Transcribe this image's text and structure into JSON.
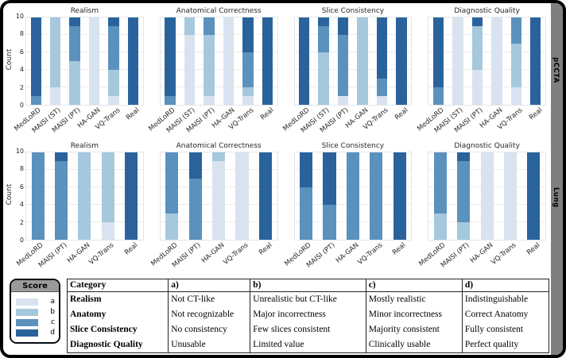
{
  "figure": {
    "ylabel": "Count",
    "yticks": [
      0,
      2,
      4,
      6,
      8,
      10
    ],
    "ylim": [
      0,
      10
    ],
    "side_labels": [
      "pCCTA",
      "Lung"
    ],
    "palette": {
      "a": "#d8e3ef",
      "b": "#a6c8dd",
      "c": "#5b91bd",
      "d": "#2a639c"
    },
    "strip_color": "#7f7f7f",
    "grid_color": "#ececec"
  },
  "legend": {
    "title": "Score",
    "entries": [
      {
        "label": "a",
        "color": "#d8e3ef"
      },
      {
        "label": "b",
        "color": "#a6c8dd"
      },
      {
        "label": "c",
        "color": "#5b91bd"
      },
      {
        "label": "d",
        "color": "#2a639c"
      }
    ]
  },
  "chart_data": [
    {
      "type": "bar",
      "stacked": true,
      "group": "pCCTA",
      "title": "Realism",
      "ylabel": "Count",
      "ylim": [
        0,
        10
      ],
      "categories": [
        "MedLoRD",
        "MAISI (ST)",
        "MAISI (PT)",
        "HA-GAN",
        "VQ-Trans",
        "Real"
      ],
      "series": [
        {
          "name": "a",
          "values": [
            0,
            2,
            0,
            10,
            1,
            0
          ]
        },
        {
          "name": "b",
          "values": [
            0,
            8,
            5,
            0,
            3,
            0
          ]
        },
        {
          "name": "c",
          "values": [
            1,
            0,
            4,
            0,
            5,
            0
          ]
        },
        {
          "name": "d",
          "values": [
            9,
            0,
            1,
            0,
            1,
            10
          ]
        }
      ]
    },
    {
      "type": "bar",
      "stacked": true,
      "group": "pCCTA",
      "title": "Anatomical Correctness",
      "ylabel": "Count",
      "ylim": [
        0,
        10
      ],
      "categories": [
        "MedLoRD",
        "MAISI (ST)",
        "MAISI (PT)",
        "HA-GAN",
        "VQ-Trans",
        "Real"
      ],
      "series": [
        {
          "name": "a",
          "values": [
            0,
            8,
            1,
            10,
            1,
            0
          ]
        },
        {
          "name": "b",
          "values": [
            0,
            2,
            7,
            0,
            1,
            0
          ]
        },
        {
          "name": "c",
          "values": [
            1,
            0,
            2,
            0,
            4,
            0
          ]
        },
        {
          "name": "d",
          "values": [
            9,
            0,
            0,
            0,
            4,
            10
          ]
        }
      ]
    },
    {
      "type": "bar",
      "stacked": true,
      "group": "pCCTA",
      "title": "Slice Consistency",
      "ylabel": "Count",
      "ylim": [
        0,
        10
      ],
      "categories": [
        "MedLoRD",
        "MAISI (ST)",
        "MAISI (PT)",
        "HA-GAN",
        "VQ-Trans",
        "Real"
      ],
      "series": [
        {
          "name": "a",
          "values": [
            0,
            0,
            1,
            0,
            1,
            0
          ]
        },
        {
          "name": "b",
          "values": [
            0,
            6,
            0,
            10,
            0,
            0
          ]
        },
        {
          "name": "c",
          "values": [
            0,
            3,
            7,
            0,
            2,
            0
          ]
        },
        {
          "name": "d",
          "values": [
            10,
            1,
            2,
            0,
            7,
            10
          ]
        }
      ]
    },
    {
      "type": "bar",
      "stacked": true,
      "group": "pCCTA",
      "title": "Diagnostic Quality",
      "ylabel": "Count",
      "ylim": [
        0,
        10
      ],
      "categories": [
        "MedLoRD",
        "MAISI (ST)",
        "MAISI (PT)",
        "HA-GAN",
        "VQ-Trans",
        "Real"
      ],
      "series": [
        {
          "name": "a",
          "values": [
            0,
            10,
            4,
            10,
            2,
            0
          ]
        },
        {
          "name": "b",
          "values": [
            0,
            0,
            5,
            0,
            5,
            0
          ]
        },
        {
          "name": "c",
          "values": [
            2,
            0,
            0,
            0,
            3,
            0
          ]
        },
        {
          "name": "d",
          "values": [
            8,
            0,
            1,
            0,
            0,
            10
          ]
        }
      ]
    },
    {
      "type": "bar",
      "stacked": true,
      "group": "Lung",
      "title": "Realism",
      "ylabel": "Count",
      "ylim": [
        0,
        10
      ],
      "categories": [
        "MedLoRD",
        "MAISI (PT)",
        "HA-GAN",
        "VQ-Trans",
        "Real"
      ],
      "series": [
        {
          "name": "a",
          "values": [
            0,
            0,
            0,
            2,
            0
          ]
        },
        {
          "name": "b",
          "values": [
            0,
            0,
            10,
            8,
            0
          ]
        },
        {
          "name": "c",
          "values": [
            10,
            9,
            0,
            0,
            0
          ]
        },
        {
          "name": "d",
          "values": [
            0,
            1,
            0,
            0,
            10
          ]
        }
      ]
    },
    {
      "type": "bar",
      "stacked": true,
      "group": "Lung",
      "title": "Anatomical Correctness",
      "ylabel": "Count",
      "ylim": [
        0,
        10
      ],
      "categories": [
        "MedLoRD",
        "MAISI (PT)",
        "HA-GAN",
        "VQ-Trans",
        "Real"
      ],
      "series": [
        {
          "name": "a",
          "values": [
            0,
            0,
            9,
            10,
            0
          ]
        },
        {
          "name": "b",
          "values": [
            3,
            0,
            1,
            0,
            0
          ]
        },
        {
          "name": "c",
          "values": [
            7,
            7,
            0,
            0,
            0
          ]
        },
        {
          "name": "d",
          "values": [
            0,
            3,
            0,
            0,
            10
          ]
        }
      ]
    },
    {
      "type": "bar",
      "stacked": true,
      "group": "Lung",
      "title": "Slice Consistency",
      "ylabel": "Count",
      "ylim": [
        0,
        10
      ],
      "categories": [
        "MedLoRD",
        "MAISI (PT)",
        "HA-GAN",
        "VQ-Trans",
        "Real"
      ],
      "series": [
        {
          "name": "a",
          "values": [
            0,
            0,
            0,
            0,
            0
          ]
        },
        {
          "name": "b",
          "values": [
            0,
            0,
            0,
            0,
            0
          ]
        },
        {
          "name": "c",
          "values": [
            6,
            4,
            10,
            10,
            0
          ]
        },
        {
          "name": "d",
          "values": [
            4,
            6,
            0,
            0,
            10
          ]
        }
      ]
    },
    {
      "type": "bar",
      "stacked": true,
      "group": "Lung",
      "title": "Diagnostic Quality",
      "ylabel": "Count",
      "ylim": [
        0,
        10
      ],
      "categories": [
        "MedLoRD",
        "MAISI (PT)",
        "HA-GAN",
        "VQ-Trans",
        "Real"
      ],
      "series": [
        {
          "name": "a",
          "values": [
            0,
            0,
            10,
            10,
            0
          ]
        },
        {
          "name": "b",
          "values": [
            3,
            2,
            0,
            0,
            0
          ]
        },
        {
          "name": "c",
          "values": [
            7,
            7,
            0,
            0,
            0
          ]
        },
        {
          "name": "d",
          "values": [
            0,
            1,
            0,
            0,
            10
          ]
        }
      ]
    }
  ],
  "table": {
    "headers": [
      "Category",
      "a)",
      "b)",
      "c)",
      "d)"
    ],
    "col_widths": [
      "21%",
      "17%",
      "24%",
      "20%",
      "18%"
    ],
    "rows": [
      [
        "Realism",
        "Not CT-like",
        "Unrealistic but CT-like",
        "Mostly realistic",
        "Indistinguishable"
      ],
      [
        "Anatomy",
        "Not recognizable",
        "Major incorrectness",
        "Minor incorrectness",
        "Correct Anatomy"
      ],
      [
        "Slice Consistency",
        "No consistency",
        "Few slices consistent",
        "Majority consistent",
        "Fully consistent"
      ],
      [
        "Diagnostic Quality",
        "Unusable",
        "Limited value",
        "Clinically usable",
        "Perfect quality"
      ]
    ]
  }
}
